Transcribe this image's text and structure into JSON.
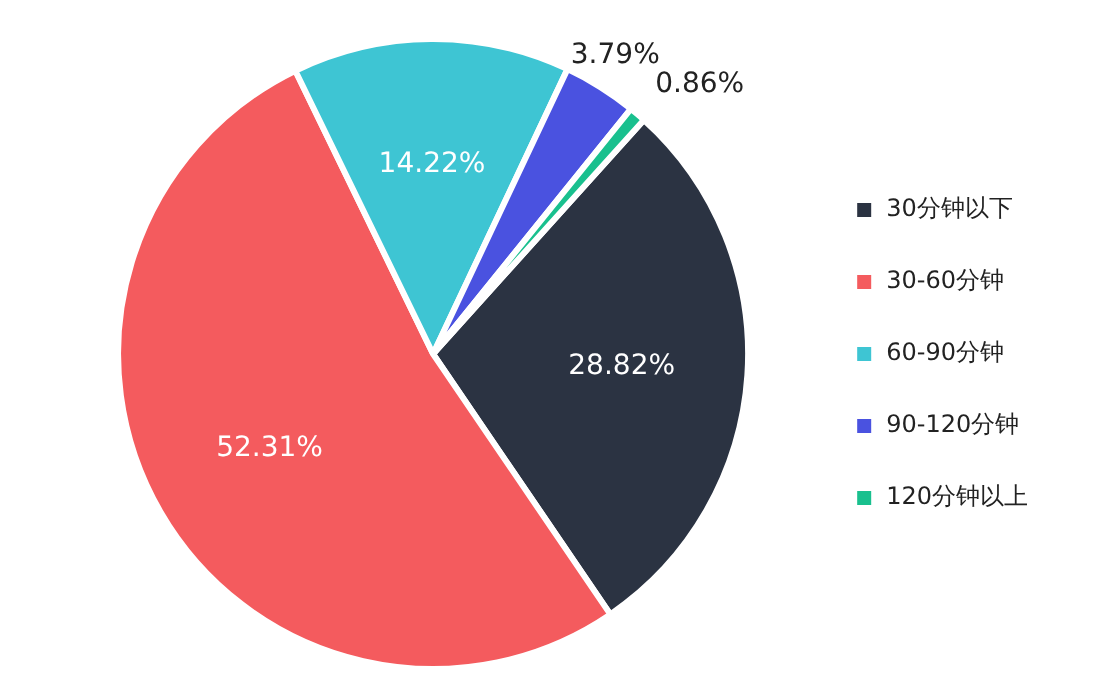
{
  "chart_data": {
    "type": "pie",
    "categories": [
      "30分钟以下",
      "30-60分钟",
      "60-90分钟",
      "90-120分钟",
      "120分钟以上"
    ],
    "values": [
      28.82,
      52.31,
      14.22,
      3.79,
      0.86
    ],
    "colors": [
      "#2b3342",
      "#f45b5e",
      "#3ec5d3",
      "#4a52e0",
      "#19c08e"
    ],
    "value_labels": [
      "28.82%",
      "52.31%",
      "14.22%",
      "3.79%",
      "0.86%"
    ],
    "legend": "right"
  }
}
